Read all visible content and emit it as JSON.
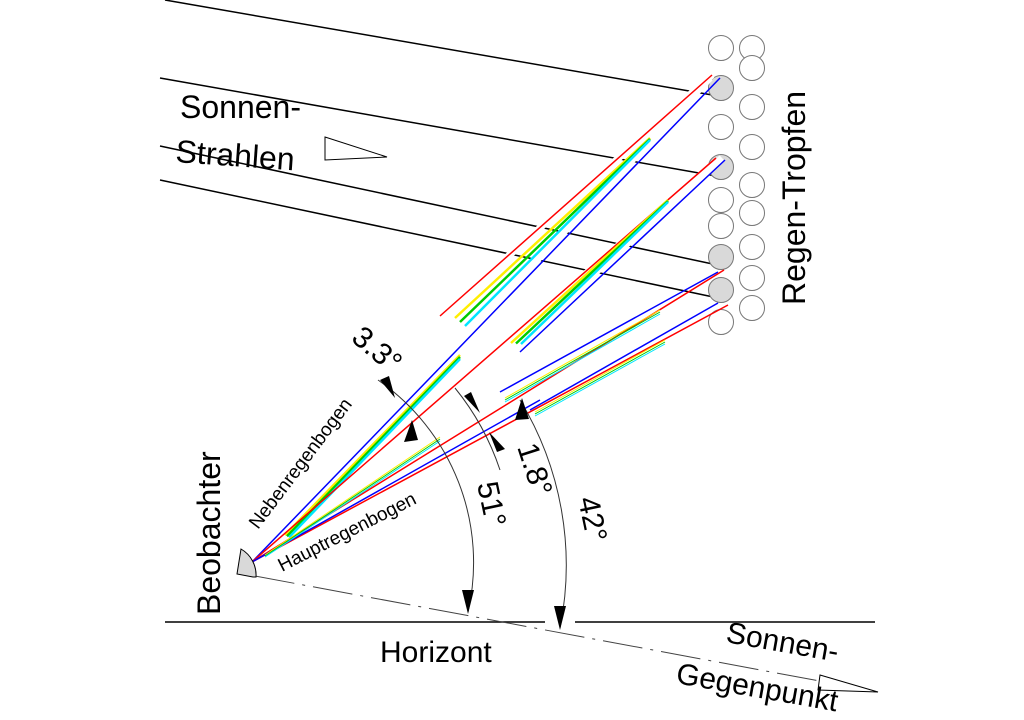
{
  "labels": {
    "sun_rays_1": "Sonnen-",
    "sun_rays_2": "Strahlen",
    "raindrops": "Regen-Tropfen",
    "observer": "Beobachter",
    "horizon": "Horizont",
    "antisolar_1": "Sonnen-",
    "antisolar_2": "Gegenpunkt",
    "secondary_bow": "Nebenregenbogen",
    "primary_bow": "Hauptregenbogen",
    "angle_secondary_width": "3.3°",
    "angle_primary_width": "1.8°",
    "angle_secondary": "51°",
    "angle_primary": "42°"
  },
  "colors": {
    "red": "#ff0000",
    "yellow": "#ffee00",
    "green": "#00cc00",
    "cyan": "#00e5ff",
    "blue": "#0000ff",
    "drop_fill": "#d9d9d9"
  }
}
